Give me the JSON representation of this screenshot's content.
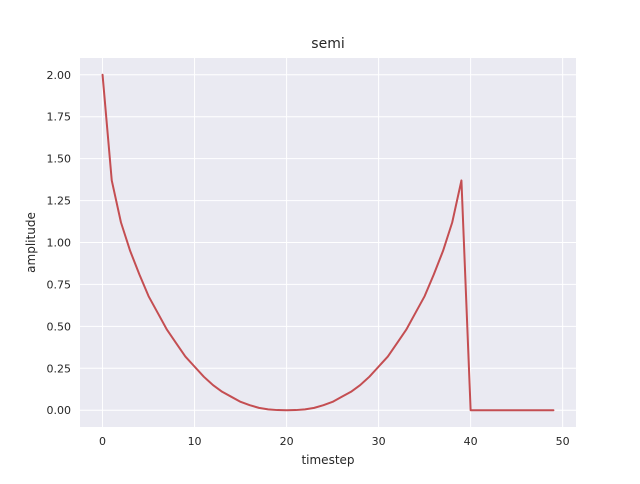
{
  "chart_data": {
    "type": "line",
    "title": "semi",
    "xlabel": "timestep",
    "ylabel": "amplitude",
    "xlim": [
      -2.45,
      51.45
    ],
    "ylim": [
      -0.1,
      2.1
    ],
    "grid": true,
    "legend": "none",
    "x_ticks": [
      0,
      10,
      20,
      30,
      40,
      50
    ],
    "x_tick_labels": [
      "0",
      "10",
      "20",
      "30",
      "40",
      "50"
    ],
    "y_ticks": [
      0,
      0.25,
      0.5,
      0.75,
      1,
      1.25,
      1.5,
      1.75,
      2
    ],
    "y_tick_labels": [
      "0.00",
      "0.25",
      "0.50",
      "0.75",
      "1.00",
      "1.25",
      "1.50",
      "1.75",
      "2.00"
    ],
    "colors": {
      "line": "#c44e52",
      "plot_background": "#eaeaf2",
      "grid": "#ffffff"
    },
    "series": [
      {
        "x": [
          0,
          1,
          2,
          3,
          4,
          5,
          6,
          7,
          8,
          9,
          10,
          11,
          12,
          13,
          14,
          15,
          16,
          17,
          18,
          19,
          20,
          21,
          22,
          23,
          24,
          25,
          26,
          27,
          28,
          29,
          30,
          31,
          32,
          33,
          34,
          35,
          36,
          37,
          38,
          39,
          40,
          41,
          42,
          43,
          44,
          45,
          46,
          47,
          48,
          49
        ],
        "values": [
          2.0,
          1.37,
          1.12,
          0.95,
          0.81,
          0.68,
          0.58,
          0.48,
          0.4,
          0.32,
          0.26,
          0.2,
          0.15,
          0.11,
          0.08,
          0.05,
          0.03,
          0.014,
          0.005,
          0.001,
          0.0,
          0.001,
          0.005,
          0.014,
          0.03,
          0.05,
          0.08,
          0.11,
          0.15,
          0.2,
          0.26,
          0.32,
          0.4,
          0.48,
          0.58,
          0.68,
          0.81,
          0.95,
          1.12,
          1.37,
          0.0,
          0.0,
          0.0,
          0.0,
          0.0,
          0.0,
          0.0,
          0.0,
          0.0,
          0.0
        ]
      }
    ]
  }
}
